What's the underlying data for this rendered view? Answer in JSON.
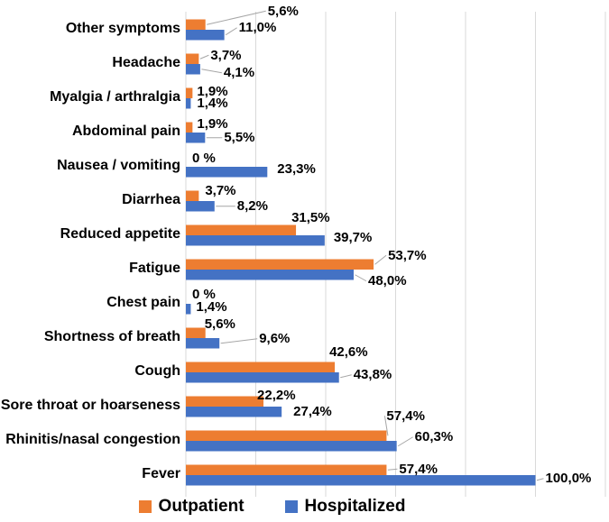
{
  "chart_data": {
    "type": "bar",
    "orientation": "horizontal",
    "title": "",
    "xlabel": "",
    "ylabel": "",
    "categories": [
      "Other symptoms",
      "Headache",
      "Myalgia / arthralgia",
      "Abdominal pain",
      "Nausea / vomiting",
      "Diarrhea",
      "Reduced appetite",
      "Fatigue",
      "Chest pain",
      "Shortness of breath",
      "Cough",
      "Sore throat or hoarseness",
      "Rhinitis/nasal congestion",
      "Fever"
    ],
    "series": [
      {
        "name": "Outpatient",
        "color": "#ED7D31",
        "values": [
          5.6,
          3.7,
          1.9,
          1.9,
          0,
          3.7,
          31.5,
          53.7,
          0,
          5.6,
          42.6,
          22.2,
          57.4,
          57.4
        ],
        "labels": [
          "5,6%",
          "3,7%",
          "1,9%",
          "1,9%",
          "0 %",
          "3,7%",
          "31,5%",
          "53,7%",
          "0 %",
          "5,6%",
          "42,6%",
          "22,2%",
          "57,4%",
          "57,4%"
        ],
        "label_offsets": [
          [
            64,
            -15,
            1
          ],
          [
            8,
            -4,
            1
          ],
          [
            0,
            -2,
            0
          ],
          [
            0,
            -4,
            0
          ],
          [
            2,
            -4,
            0
          ],
          [
            2,
            -6,
            0
          ],
          [
            -10,
            -14,
            0
          ],
          [
            11,
            -10,
            1
          ],
          [
            2,
            -5,
            0
          ],
          [
            -6,
            -10,
            0
          ],
          [
            -11,
            -17,
            0
          ],
          [
            -12,
            -7,
            0
          ],
          [
            -5,
            -22,
            1
          ],
          [
            9,
            -1,
            1
          ]
        ]
      },
      {
        "name": "Hospitalized",
        "color": "#4472C4",
        "values": [
          11.0,
          4.1,
          1.4,
          5.5,
          23.3,
          8.2,
          39.7,
          48.0,
          1.4,
          9.6,
          43.8,
          27.4,
          60.3,
          100.0
        ],
        "labels": [
          "11,0%",
          "4,1%",
          "1,4%",
          "5,5%",
          "23,3%",
          "8,2%",
          "39,7%",
          "48,0%",
          "1,4%",
          "9,6%",
          "43,8%",
          "27,4%",
          "60,3%",
          "100,0%"
        ],
        "label_offsets": [
          [
            11,
            -8,
            1
          ],
          [
            21,
            4,
            1
          ],
          [
            2,
            0,
            0
          ],
          [
            16,
            0,
            1
          ],
          [
            6,
            -3,
            0
          ],
          [
            20,
            0,
            1
          ],
          [
            5,
            -3,
            0
          ],
          [
            11,
            7,
            1
          ],
          [
            1,
            -2,
            0
          ],
          [
            39,
            -5,
            1
          ],
          [
            11,
            -3,
            1
          ],
          [
            8,
            0,
            0
          ],
          [
            15,
            -10,
            1
          ],
          [
            6,
            -2,
            1
          ]
        ]
      }
    ],
    "xlim": [
      0,
      120
    ],
    "grid_interval": 20,
    "grid_on": true,
    "legend_position": "bottom",
    "gridline_color": "#D9D9D9",
    "leader_color": "#A6A6A6",
    "label_color": "#000000",
    "value_unit": "%"
  },
  "legend": {
    "items": [
      {
        "label": "Outpatient",
        "color": "#ED7D31"
      },
      {
        "label": "Hospitalized",
        "color": "#4472C4"
      }
    ]
  }
}
